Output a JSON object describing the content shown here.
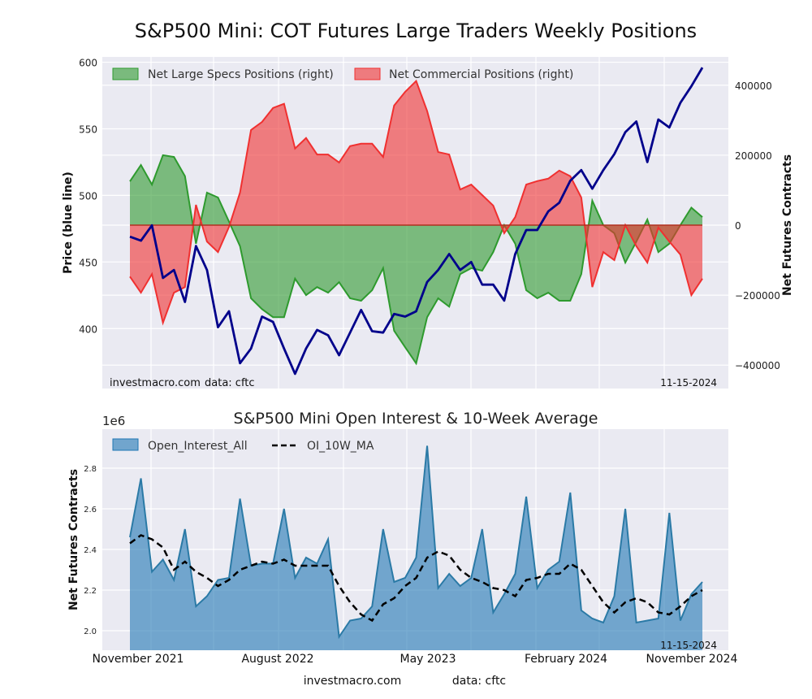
{
  "chart_data": [
    {
      "type": "area+line",
      "title": "S&P500 Mini: COT Futures Large Traders Weekly Positions",
      "ylabel_left": "Price (blue line)",
      "ylabel_right": "Net Futures Contracts",
      "ylim_left": [
        355,
        604
      ],
      "ylim_right": [
        -467000,
        481000
      ],
      "yticks_left": [
        400,
        450,
        500,
        550,
        600
      ],
      "yticks_right": [
        -400000,
        -200000,
        0,
        200000,
        400000
      ],
      "grid": true,
      "legend_position": "top-left",
      "watermark": "investmacro.com",
      "source": "data: cftc",
      "date_label": "11-15-2024",
      "x": [
        "2021-11-16",
        "2021-12-07",
        "2021-12-28",
        "2022-01-18",
        "2022-02-08",
        "2022-03-01",
        "2022-03-22",
        "2022-04-12",
        "2022-05-03",
        "2022-05-24",
        "2022-06-14",
        "2022-07-05",
        "2022-07-26",
        "2022-08-16",
        "2022-09-06",
        "2022-09-27",
        "2022-10-18",
        "2022-11-08",
        "2022-11-29",
        "2022-12-20",
        "2023-01-10",
        "2023-01-31",
        "2023-02-21",
        "2023-03-14",
        "2023-04-04",
        "2023-04-25",
        "2023-05-16",
        "2023-06-06",
        "2023-06-27",
        "2023-07-18",
        "2023-08-08",
        "2023-08-29",
        "2023-09-19",
        "2023-10-10",
        "2023-10-31",
        "2023-11-21",
        "2023-12-12",
        "2024-01-02",
        "2024-01-23",
        "2024-02-13",
        "2024-03-05",
        "2024-03-26",
        "2024-04-16",
        "2024-05-07",
        "2024-05-28",
        "2024-06-18",
        "2024-07-09",
        "2024-07-30",
        "2024-08-20",
        "2024-09-10",
        "2024-10-01",
        "2024-10-22",
        "2024-11-12"
      ],
      "series": [
        {
          "name": "Net Large Specs Positions (right)",
          "axis": "right",
          "kind": "area",
          "color": "#2e9a2e",
          "values": [
            125000,
            172000,
            116000,
            200000,
            195000,
            140000,
            -53000,
            93000,
            79000,
            10000,
            -60000,
            -209000,
            -240000,
            -263000,
            -263000,
            -153000,
            -200000,
            -177000,
            -193000,
            -163000,
            -209000,
            -216000,
            -186000,
            -123000,
            -302000,
            -349000,
            -395000,
            -263000,
            -209000,
            -233000,
            -140000,
            -123000,
            -130000,
            -77000,
            0,
            -53000,
            -186000,
            -209000,
            -193000,
            -216000,
            -216000,
            -140000,
            70000,
            0,
            -23000,
            -107000,
            -47000,
            16000,
            -77000,
            -53000,
            0,
            50000,
            23000
          ]
        },
        {
          "name": "Net Commercial Positions (right)",
          "axis": "right",
          "kind": "area",
          "color": "#f03030",
          "values": [
            -147000,
            -193000,
            -140000,
            -279000,
            -193000,
            -177000,
            58000,
            -47000,
            -77000,
            -5000,
            93000,
            272000,
            295000,
            335000,
            347000,
            219000,
            249000,
            202000,
            202000,
            179000,
            226000,
            233000,
            233000,
            195000,
            342000,
            381000,
            412000,
            326000,
            209000,
            202000,
            102000,
            116000,
            86000,
            56000,
            -23000,
            23000,
            116000,
            126000,
            133000,
            156000,
            140000,
            79000,
            -177000,
            -77000,
            -100000,
            0,
            -60000,
            -107000,
            -7000,
            -47000,
            -84000,
            -200000,
            -153000
          ]
        },
        {
          "name": "",
          "axis": "left",
          "kind": "line",
          "color": "#00008b",
          "values": [
            469,
            466,
            477.5,
            438,
            444,
            420,
            462,
            444,
            401,
            413,
            374,
            385,
            409,
            405,
            385,
            366,
            385,
            399,
            395,
            380,
            397,
            414,
            398,
            397,
            411,
            409,
            413,
            435,
            444,
            456,
            444,
            450,
            433,
            433,
            421,
            456,
            474,
            474,
            488,
            494.5,
            511,
            519,
            505,
            519,
            531,
            547.5,
            555.5,
            525,
            557,
            551,
            569.5,
            582,
            596
          ]
        }
      ]
    },
    {
      "type": "area+line",
      "title": "S&P500 Mini Open Interest & 10-Week Average",
      "ylabel": "Net Futures Contracts",
      "yscale_label": "1e6",
      "ylim": [
        1.904,
        2.992
      ],
      "yticks": [
        "2.0",
        "2.2",
        "2.4",
        "2.6",
        "2.8"
      ],
      "xticks": [
        "November 2021",
        "August 2022",
        "May 2023",
        "February 2024",
        "November 2024"
      ],
      "grid": true,
      "legend_position": "top-left",
      "date_label": "11-15-2024",
      "footer_site": "investmacro.com",
      "footer_source": "data: cftc",
      "series": [
        {
          "name": "Open_Interest_All",
          "kind": "area",
          "color": "#1f77b4",
          "values": [
            2.46,
            2.75,
            2.29,
            2.35,
            2.25,
            2.5,
            2.12,
            2.17,
            2.25,
            2.26,
            2.65,
            2.32,
            2.33,
            2.33,
            2.6,
            2.26,
            2.36,
            2.33,
            2.45,
            1.97,
            2.05,
            2.06,
            2.12,
            2.5,
            2.24,
            2.26,
            2.36,
            2.91,
            2.21,
            2.28,
            2.22,
            2.26,
            2.5,
            2.09,
            2.18,
            2.28,
            2.66,
            2.21,
            2.3,
            2.34,
            2.68,
            2.1,
            2.06,
            2.04,
            2.17,
            2.6,
            2.04,
            2.05,
            2.06,
            2.58,
            2.05,
            2.18,
            2.24
          ]
        },
        {
          "name": "OI_10W_MA",
          "kind": "dashed-line",
          "color": "#000000",
          "values": [
            2.43,
            2.47,
            2.45,
            2.41,
            2.3,
            2.34,
            2.29,
            2.26,
            2.22,
            2.25,
            2.3,
            2.32,
            2.34,
            2.33,
            2.35,
            2.32,
            2.32,
            2.32,
            2.32,
            2.22,
            2.14,
            2.08,
            2.05,
            2.13,
            2.16,
            2.22,
            2.26,
            2.36,
            2.39,
            2.37,
            2.3,
            2.26,
            2.24,
            2.21,
            2.2,
            2.17,
            2.25,
            2.26,
            2.28,
            2.28,
            2.33,
            2.3,
            2.22,
            2.14,
            2.09,
            2.14,
            2.16,
            2.14,
            2.09,
            2.08,
            2.12,
            2.17,
            2.2
          ]
        }
      ]
    }
  ]
}
